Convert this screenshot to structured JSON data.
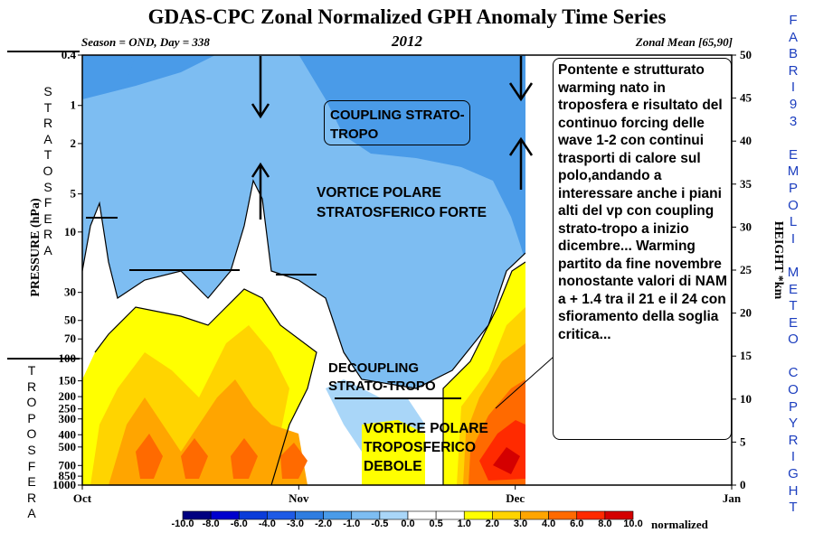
{
  "header": {
    "title": "GDAS-CPC Zonal Normalized GPH Anomaly Time Series",
    "season": "Season = OND, Day = 338",
    "year": "2012",
    "zonal": "Zonal Mean [65,90]"
  },
  "side": {
    "strato": [
      "S",
      "T",
      "R",
      "A",
      "T",
      "O",
      "S",
      "F",
      "E",
      "R",
      "A"
    ],
    "tropo": [
      "T",
      "R",
      "O",
      "P",
      "O",
      "S",
      "F",
      "E",
      "R",
      "A"
    ],
    "watermark": [
      "F",
      "A",
      "B",
      "R",
      "I",
      "9",
      "3",
      "",
      "E",
      "M",
      "P",
      "O",
      "L",
      "I",
      "",
      "M",
      "E",
      "T",
      "E",
      "O",
      "",
      "C",
      "O",
      "P",
      "Y",
      "R",
      "I",
      "G",
      "H",
      "T"
    ]
  },
  "chart_data": {
    "type": "heatmap",
    "title": "GDAS-CPC Zonal Normalized GPH Anomaly Time Series",
    "xlabel": "",
    "ylabel": "PRESSURE (hPa)",
    "ylabel_right": "HEIGHT *km",
    "x_ticks": [
      "Oct",
      "Nov",
      "Dec",
      "Jan"
    ],
    "y_ticks_pressure": [
      "0.4",
      "1",
      "2",
      "5",
      "10",
      "30",
      "50",
      "70",
      "100",
      "150",
      "200",
      "250",
      "300",
      "400",
      "500",
      "700",
      "850",
      "1000"
    ],
    "y_ticks_height": [
      "50",
      "45",
      "40",
      "35",
      "30",
      "25",
      "20",
      "15",
      "10",
      "5",
      "0"
    ],
    "colorbar": {
      "label": "normalized",
      "levels": [
        "-10.0",
        "-8.0",
        "-6.0",
        "-4.0",
        "-3.0",
        "-2.0",
        "-1.0",
        "-0.5",
        "0.0",
        "0.5",
        "1.0",
        "2.0",
        "3.0",
        "4.0",
        "6.0",
        "8.0",
        "10.0"
      ],
      "colors": [
        "#000080",
        "#0000cd",
        "#0b3cd9",
        "#1e5ae6",
        "#2f7de0",
        "#4a9be8",
        "#7dbdf2",
        "#a9d6f8",
        "#ffffff",
        "#ffffff",
        "#ffff00",
        "#ffd400",
        "#ffa500",
        "#ff6a00",
        "#ff2a00",
        "#d40000"
      ]
    },
    "annotations": [
      "COUPLING STRATO-TROPO",
      "VORTICE POLARE STRATOSFERICO FORTE",
      "DECOUPLING STRATO-TROPO",
      "VORTICE POLARE TROPOSFERICO DEBOLE"
    ],
    "comment": "Pontente e strutturato warming nato in troposfera e risultato del continuo forcing delle wave 1-2 con continui trasporti di calore sul polo,andando a interessare anche i piani alti del vp con coupling strato-tropo a inizio dicembre... Warming partito da fine novembre nonostante valori di NAM a + 1.4 tra il 21 e il 24 con sfioramento della soglia critica..."
  }
}
